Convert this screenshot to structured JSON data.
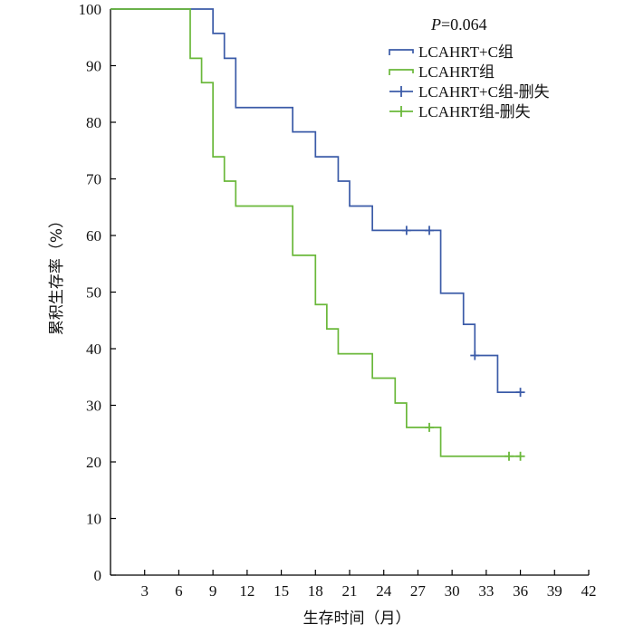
{
  "chart_data": {
    "type": "line",
    "subtype": "kaplan-meier-step",
    "title": "",
    "xlabel": "生存时间（月）",
    "ylabel": "累积生存率（%）",
    "xlim": [
      0,
      42
    ],
    "ylim": [
      0,
      100
    ],
    "xticks": [
      3,
      6,
      9,
      12,
      15,
      18,
      21,
      24,
      27,
      30,
      33,
      36,
      39,
      42
    ],
    "yticks": [
      0,
      10,
      20,
      30,
      40,
      50,
      60,
      70,
      80,
      90,
      100
    ],
    "grid": false,
    "legend_position": "top-right",
    "annotation": {
      "p_prefix": "P",
      "p_suffix": "=0.064"
    },
    "series": [
      {
        "name": "LCAHRT+C组",
        "color": "#3b5ba8",
        "x": [
          0,
          9,
          10,
          11,
          16,
          18,
          20,
          21,
          23,
          29,
          31,
          32,
          34,
          36
        ],
        "y": [
          100,
          95.7,
          91.3,
          82.6,
          78.3,
          73.9,
          69.6,
          65.2,
          60.9,
          49.8,
          44.3,
          38.8,
          32.3,
          32.3
        ]
      },
      {
        "name": "LCAHRT组",
        "color": "#6ab83a",
        "x": [
          0,
          7,
          8,
          9,
          10,
          11,
          16,
          18,
          19,
          20,
          23,
          25,
          26,
          29,
          36
        ],
        "y": [
          100,
          91.3,
          87.0,
          73.9,
          69.6,
          65.2,
          56.5,
          47.8,
          43.5,
          39.1,
          34.8,
          30.4,
          26.1,
          21.0,
          21.0
        ]
      }
    ],
    "censored": [
      {
        "name": "LCAHRT+C组-删失",
        "color": "#3b5ba8",
        "x": [
          26,
          28,
          32,
          36
        ],
        "y": [
          60.9,
          60.9,
          38.8,
          32.3
        ]
      },
      {
        "name": "LCAHRT组-删失",
        "color": "#6ab83a",
        "x": [
          28,
          35,
          36
        ],
        "y": [
          26.1,
          21.0,
          21.0
        ]
      }
    ]
  }
}
